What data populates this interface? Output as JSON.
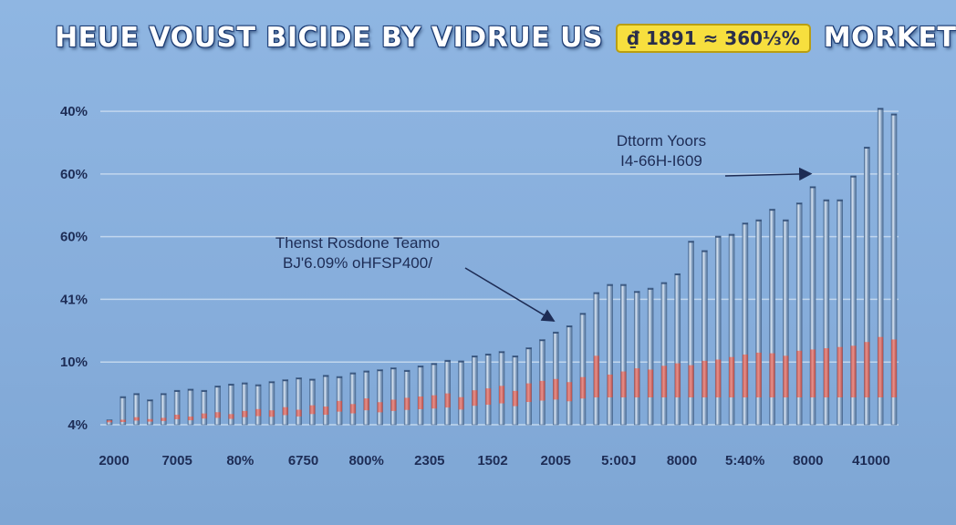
{
  "header": {
    "title_left": "HEUE VOUST BICIDE BY VIDRUE US",
    "badge": "₫ 1891 ≈ 360⅓%",
    "title_right": "MORKET"
  },
  "colors": {
    "background": "#8fb6e2",
    "bar_body": "#6f8fb3",
    "bar_highlight": "#dbe6f3",
    "bar_red": "#d9675f",
    "gridline": "#c9dcf0",
    "axis_text": "#1d2c55",
    "annotation_text": "#1d2c55",
    "title_badge": "#f7df3e"
  },
  "chart_data": {
    "type": "bar",
    "title": "HEUE VOUST BICIDE BY VIDRUE US ₫ 1891 ≈ 360⅓% MORKET",
    "xlabel": "",
    "ylabel": "",
    "yticks": [
      {
        "value": 0,
        "label": "4%"
      },
      {
        "value": 1,
        "label": "10%"
      },
      {
        "value": 2,
        "label": "41%"
      },
      {
        "value": 3,
        "label": "60%"
      },
      {
        "value": 4,
        "label": "60%"
      },
      {
        "value": 5,
        "label": "40%"
      }
    ],
    "ylim": [
      0,
      5.35
    ],
    "xtick_labels": [
      "2000",
      "7005",
      "80%",
      "6750",
      "800%",
      "2305",
      "1502",
      "2005",
      "5:00J",
      "8000",
      "5:40%",
      "8000",
      "41000"
    ],
    "grid": true,
    "total": [
      0.08,
      0.45,
      0.5,
      0.4,
      0.5,
      0.55,
      0.57,
      0.55,
      0.62,
      0.65,
      0.67,
      0.64,
      0.69,
      0.72,
      0.75,
      0.73,
      0.79,
      0.77,
      0.83,
      0.86,
      0.88,
      0.91,
      0.87,
      0.94,
      0.98,
      1.03,
      1.02,
      1.1,
      1.13,
      1.17,
      1.1,
      1.23,
      1.36,
      1.48,
      1.58,
      1.78,
      2.11,
      2.24,
      2.24,
      2.13,
      2.18,
      2.27,
      2.41,
      2.93,
      2.78,
      3.01,
      3.04,
      3.22,
      3.27,
      3.44,
      3.27,
      3.54,
      3.8,
      3.59,
      3.59,
      3.97,
      4.43,
      5.05,
      4.96
    ],
    "red": [
      0.07,
      0.08,
      0.12,
      0.09,
      0.11,
      0.16,
      0.13,
      0.18,
      0.2,
      0.17,
      0.22,
      0.25,
      0.23,
      0.28,
      0.24,
      0.31,
      0.29,
      0.38,
      0.33,
      0.42,
      0.36,
      0.4,
      0.43,
      0.45,
      0.47,
      0.5,
      0.44,
      0.55,
      0.58,
      0.62,
      0.54,
      0.66,
      0.7,
      0.73,
      0.68,
      0.76,
      1.1,
      0.8,
      0.85,
      0.9,
      0.88,
      0.94,
      0.98,
      0.95,
      1.02,
      1.04,
      1.08,
      1.12,
      1.15,
      1.14,
      1.1,
      1.18,
      1.2,
      1.22,
      1.24,
      1.26,
      1.32,
      1.4,
      1.36
    ],
    "annotations": [
      {
        "line1": "Thenst Rosdone Teamo",
        "line2": "BJ'6.09% oHFSP400/",
        "target_index": 33
      },
      {
        "line1": "Dttorm Yoors",
        "line2": "I4-66H-I609",
        "target_index": 52
      }
    ]
  }
}
